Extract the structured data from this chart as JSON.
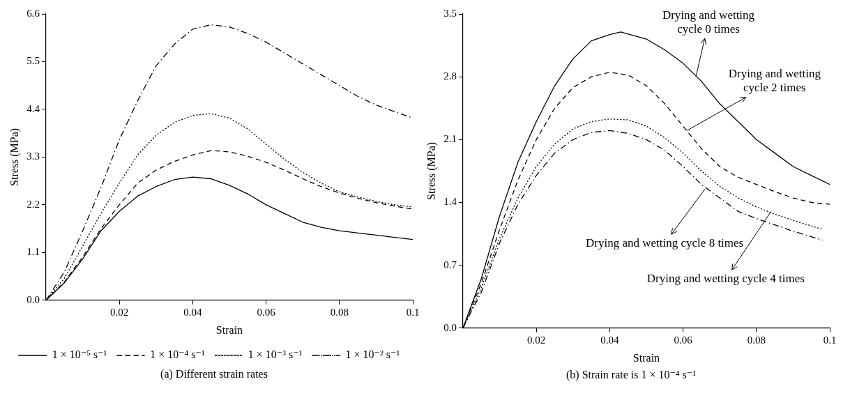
{
  "chart_data": [
    {
      "type": "line",
      "title": "(a)  Different strain rates",
      "xlabel": "Strain",
      "ylabel": "Stress (MPa)",
      "xlim": [
        0,
        0.1
      ],
      "xticks": [
        0.02,
        0.04,
        0.06,
        0.08,
        0.1
      ],
      "ylim": [
        0,
        6.6
      ],
      "yticks": [
        "0.0",
        1.1,
        2.2,
        3.3,
        4.4,
        5.5,
        6.6
      ],
      "legend": "bottom",
      "marker": "none",
      "x": [
        0,
        0.005,
        0.01,
        0.015,
        0.02,
        0.025,
        0.03,
        0.035,
        0.04,
        0.045,
        0.05,
        0.055,
        0.06,
        0.065,
        0.07,
        0.075,
        0.08,
        0.085,
        0.09,
        0.095,
        0.1
      ],
      "series": [
        {
          "name": "1 × 10⁻⁵ s⁻¹",
          "color": "#000000",
          "line_style": "solid",
          "values": [
            0,
            0.4,
            0.95,
            1.6,
            2.05,
            2.4,
            2.62,
            2.78,
            2.84,
            2.8,
            2.65,
            2.45,
            2.2,
            2.0,
            1.8,
            1.68,
            1.6,
            1.55,
            1.5,
            1.45,
            1.4
          ]
        },
        {
          "name": "1 × 10⁻⁴ s⁻¹",
          "color": "#000000",
          "line_style": "dashed",
          "values": [
            0,
            0.42,
            1.0,
            1.65,
            2.2,
            2.7,
            3.0,
            3.2,
            3.35,
            3.45,
            3.42,
            3.32,
            3.18,
            3.0,
            2.8,
            2.62,
            2.47,
            2.35,
            2.25,
            2.17,
            2.1
          ]
        },
        {
          "name": "1 × 10⁻³ s⁻¹",
          "color": "#000000",
          "line_style": "dotted",
          "values": [
            0,
            0.5,
            1.25,
            2.0,
            2.7,
            3.35,
            3.8,
            4.1,
            4.26,
            4.3,
            4.2,
            3.95,
            3.6,
            3.25,
            2.95,
            2.7,
            2.5,
            2.38,
            2.28,
            2.2,
            2.15
          ]
        },
        {
          "name": "1 × 10⁻² s⁻¹",
          "color": "#000000",
          "line_style": "dashdot",
          "values": [
            0,
            0.65,
            1.6,
            2.6,
            3.7,
            4.6,
            5.4,
            5.9,
            6.25,
            6.35,
            6.3,
            6.15,
            5.95,
            5.7,
            5.45,
            5.2,
            4.95,
            4.7,
            4.5,
            4.35,
            4.2
          ]
        }
      ]
    },
    {
      "type": "line",
      "title": "(b)  Strain rate is 1 × 10⁻⁴ s⁻¹",
      "xlabel": "Strain",
      "ylabel": "Stress (MPa)",
      "xlim": [
        0,
        0.1
      ],
      "xticks": [
        0.02,
        0.04,
        0.06,
        0.08,
        0.1
      ],
      "ylim": [
        0,
        3.5
      ],
      "yticks": [
        "0.0",
        0.7,
        1.4,
        2.1,
        2.8,
        3.5
      ],
      "marker": "none",
      "series": [
        {
          "color": "#000000",
          "line_style": "solid",
          "x": [
            0,
            0.005,
            0.01,
            0.015,
            0.02,
            0.025,
            0.03,
            0.035,
            0.04,
            0.043,
            0.05,
            0.055,
            0.06,
            0.065,
            0.07,
            0.075,
            0.08,
            0.085,
            0.09,
            0.095,
            0.1
          ],
          "values": [
            0,
            0.55,
            1.25,
            1.85,
            2.3,
            2.7,
            3.0,
            3.2,
            3.27,
            3.3,
            3.22,
            3.1,
            2.95,
            2.75,
            2.5,
            2.3,
            2.1,
            1.95,
            1.8,
            1.7,
            1.6
          ]
        },
        {
          "color": "#000000",
          "line_style": "dashed",
          "x": [
            0,
            0.005,
            0.01,
            0.015,
            0.02,
            0.025,
            0.03,
            0.035,
            0.04,
            0.045,
            0.05,
            0.055,
            0.06,
            0.065,
            0.07,
            0.075,
            0.08,
            0.085,
            0.09,
            0.095,
            0.1
          ],
          "values": [
            0,
            0.5,
            1.1,
            1.65,
            2.1,
            2.45,
            2.68,
            2.8,
            2.85,
            2.82,
            2.7,
            2.5,
            2.25,
            2.0,
            1.8,
            1.68,
            1.6,
            1.52,
            1.45,
            1.4,
            1.38
          ]
        },
        {
          "color": "#000000",
          "line_style": "dotted",
          "x": [
            0,
            0.005,
            0.01,
            0.015,
            0.02,
            0.025,
            0.03,
            0.035,
            0.04,
            0.045,
            0.05,
            0.055,
            0.06,
            0.065,
            0.07,
            0.075,
            0.08,
            0.085,
            0.09,
            0.098
          ],
          "values": [
            0,
            0.45,
            1.0,
            1.45,
            1.8,
            2.05,
            2.22,
            2.3,
            2.33,
            2.32,
            2.25,
            2.12,
            1.95,
            1.75,
            1.58,
            1.45,
            1.35,
            1.27,
            1.2,
            1.1
          ]
        },
        {
          "color": "#000000",
          "line_style": "dashdot",
          "x": [
            0,
            0.005,
            0.01,
            0.015,
            0.02,
            0.025,
            0.03,
            0.035,
            0.04,
            0.045,
            0.05,
            0.055,
            0.06,
            0.065,
            0.07,
            0.075,
            0.08,
            0.085,
            0.09,
            0.098
          ],
          "values": [
            0,
            0.4,
            0.95,
            1.38,
            1.7,
            1.95,
            2.1,
            2.18,
            2.2,
            2.17,
            2.1,
            1.98,
            1.8,
            1.6,
            1.45,
            1.3,
            1.22,
            1.15,
            1.08,
            0.98
          ]
        }
      ],
      "annotations": [
        {
          "text": "Drying and wetting\ncycle 0 times",
          "x": 0.0635,
          "y": 2.8
        },
        {
          "text": "Drying and wetting\ncycle 2 times",
          "x": 0.061,
          "y": 2.2
        },
        {
          "text": "Drying and wetting cycle 8 times",
          "x": 0.066,
          "y": 1.55
        },
        {
          "text": "Drying and wetting cycle 4 times",
          "x": 0.084,
          "y": 1.3
        }
      ]
    }
  ]
}
